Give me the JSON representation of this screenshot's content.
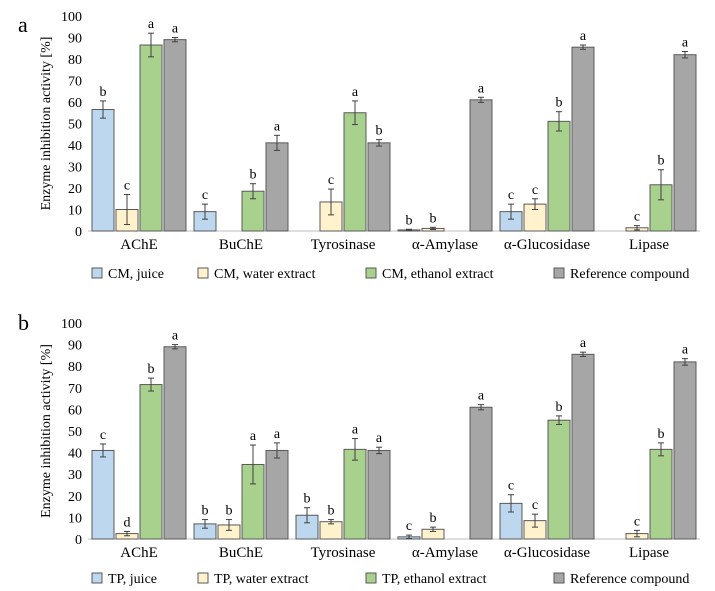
{
  "chart_data": [
    {
      "type": "bar",
      "panel_label": "a",
      "ylabel": "Enzyme inhibition activity [%]",
      "ylim": [
        0,
        100
      ],
      "yticks": [
        0,
        10,
        20,
        30,
        40,
        50,
        60,
        70,
        80,
        90,
        100
      ],
      "categories": [
        "AChE",
        "BuChE",
        "Tyrosinase",
        "α-Amylase",
        "α-Glucosidase",
        "Lipase"
      ],
      "legend_position": "bottom",
      "series": [
        {
          "name": "CM, juice",
          "color": "#bdd7ee",
          "values": [
            56.5,
            9,
            null,
            0.5,
            9,
            null
          ],
          "errors": [
            4,
            3.5,
            null,
            0.3,
            3.5,
            null
          ],
          "letters": [
            "b",
            "c",
            null,
            "b",
            "c",
            null
          ]
        },
        {
          "name": "CM, water extract",
          "color": "#fff2cc",
          "values": [
            10,
            null,
            13.5,
            1.2,
            12.5,
            1.5
          ],
          "errors": [
            7,
            null,
            6,
            0.5,
            2.5,
            1
          ],
          "letters": [
            "c",
            null,
            "c",
            "b",
            "c",
            "c"
          ]
        },
        {
          "name": "CM, ethanol extract",
          "color": "#a9d18e",
          "values": [
            86.5,
            18.5,
            55,
            null,
            51,
            21.5
          ],
          "errors": [
            5.5,
            3.5,
            5.5,
            null,
            4.5,
            7
          ],
          "letters": [
            "a",
            "b",
            "a",
            null,
            "b",
            "b"
          ]
        },
        {
          "name": "Reference compound",
          "color": "#a6a6a6",
          "values": [
            89,
            41,
            41,
            61,
            85.5,
            82
          ],
          "errors": [
            1,
            3.5,
            1.5,
            1.2,
            1,
            1.5
          ],
          "letters": [
            "a",
            "a",
            "b",
            "a",
            "a",
            "a"
          ]
        }
      ]
    },
    {
      "type": "bar",
      "panel_label": "b",
      "ylabel": "Enzyme inhibition activity [%]",
      "ylim": [
        0,
        100
      ],
      "yticks": [
        0,
        10,
        20,
        30,
        40,
        50,
        60,
        70,
        80,
        90,
        100
      ],
      "categories": [
        "AChE",
        "BuChE",
        "Tyrosinase",
        "α-Amylase",
        "α-Glucosidase",
        "Lipase"
      ],
      "legend_position": "bottom",
      "series": [
        {
          "name": "TP, juice",
          "color": "#bdd7ee",
          "values": [
            41,
            7,
            11,
            1,
            16.5,
            null
          ],
          "errors": [
            3,
            2,
            3.5,
            0.8,
            4,
            null
          ],
          "letters": [
            "c",
            "b",
            "b",
            "c",
            "c",
            null
          ]
        },
        {
          "name": "TP, water extract",
          "color": "#fff2cc",
          "values": [
            2.5,
            6.5,
            8,
            4.5,
            8.5,
            2.5
          ],
          "errors": [
            1,
            2.5,
            1,
            1,
            3,
            1.5
          ],
          "letters": [
            "d",
            "b",
            "b",
            "b",
            "c",
            "c"
          ]
        },
        {
          "name": "TP, ethanol extract",
          "color": "#a9d18e",
          "values": [
            71.5,
            34.5,
            41.5,
            null,
            55,
            41.5
          ],
          "errors": [
            3,
            9,
            5,
            null,
            2,
            3
          ],
          "letters": [
            "b",
            "a",
            "a",
            null,
            "b",
            "b"
          ]
        },
        {
          "name": "Reference compound",
          "color": "#a6a6a6",
          "values": [
            89,
            41,
            41,
            61,
            85.5,
            82
          ],
          "errors": [
            1,
            3.5,
            1.5,
            1.2,
            1,
            1.5
          ],
          "letters": [
            "a",
            "a",
            "a",
            "a",
            "a",
            "a"
          ]
        }
      ]
    }
  ]
}
